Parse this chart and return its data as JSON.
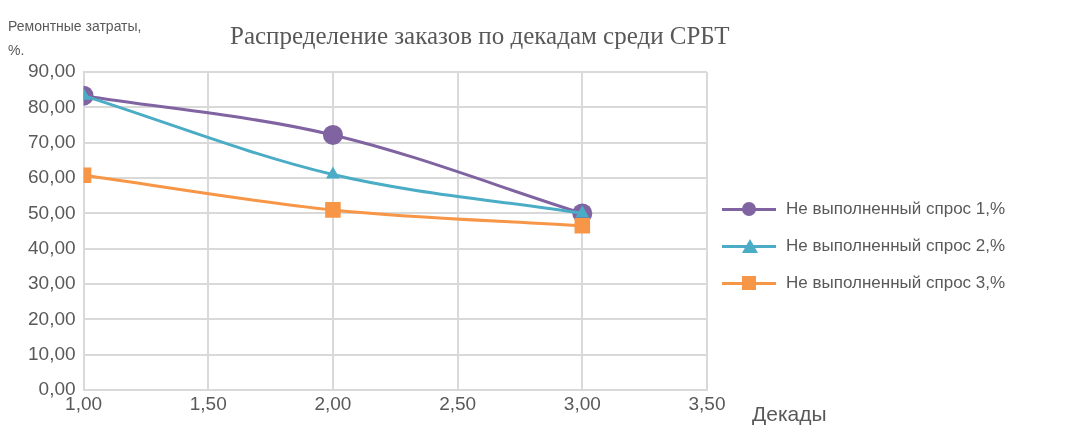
{
  "chart_data": {
    "type": "line",
    "title": "Распределение заказов по декадам среди СРБТ",
    "xlabel": "Декады",
    "ylabel": "Ремонтные затраты, %.",
    "x": [
      1,
      2,
      3
    ],
    "series": [
      {
        "name": "Не  выполненный спрос 1,%",
        "color": "#8064a2",
        "marker": "circle",
        "values": [
          83.3,
          72.2,
          50.0
        ]
      },
      {
        "name": "Не  выполненный спрос 2,%",
        "color": "#4bacc6",
        "marker": "triangle",
        "values": [
          83.3,
          61.0,
          50.0
        ]
      },
      {
        "name": "Не  выполненный спрос 3,%",
        "color": "#f79646",
        "marker": "square",
        "values": [
          60.8,
          51.0,
          46.5
        ]
      }
    ],
    "xlim": [
      1,
      3.5
    ],
    "xticks": [
      {
        "value": 1,
        "label": "1,00"
      },
      {
        "value": 1.5,
        "label": "1,50"
      },
      {
        "value": 2,
        "label": "2,00"
      },
      {
        "value": 2.5,
        "label": "2,50"
      },
      {
        "value": 3,
        "label": "3,00"
      },
      {
        "value": 3.5,
        "label": "3,50"
      }
    ],
    "ylim": [
      0,
      90
    ],
    "yticks": [
      {
        "value": 0,
        "label": "0,00"
      },
      {
        "value": 10,
        "label": "10,00"
      },
      {
        "value": 20,
        "label": "20,00"
      },
      {
        "value": 30,
        "label": "30,00"
      },
      {
        "value": 40,
        "label": "40,00"
      },
      {
        "value": 50,
        "label": "50,00"
      },
      {
        "value": 60,
        "label": "60,00"
      },
      {
        "value": 70,
        "label": "70,00"
      },
      {
        "value": 80,
        "label": "80,00"
      },
      {
        "value": 90,
        "label": "90,00"
      }
    ],
    "grid": true,
    "legend": "right"
  }
}
